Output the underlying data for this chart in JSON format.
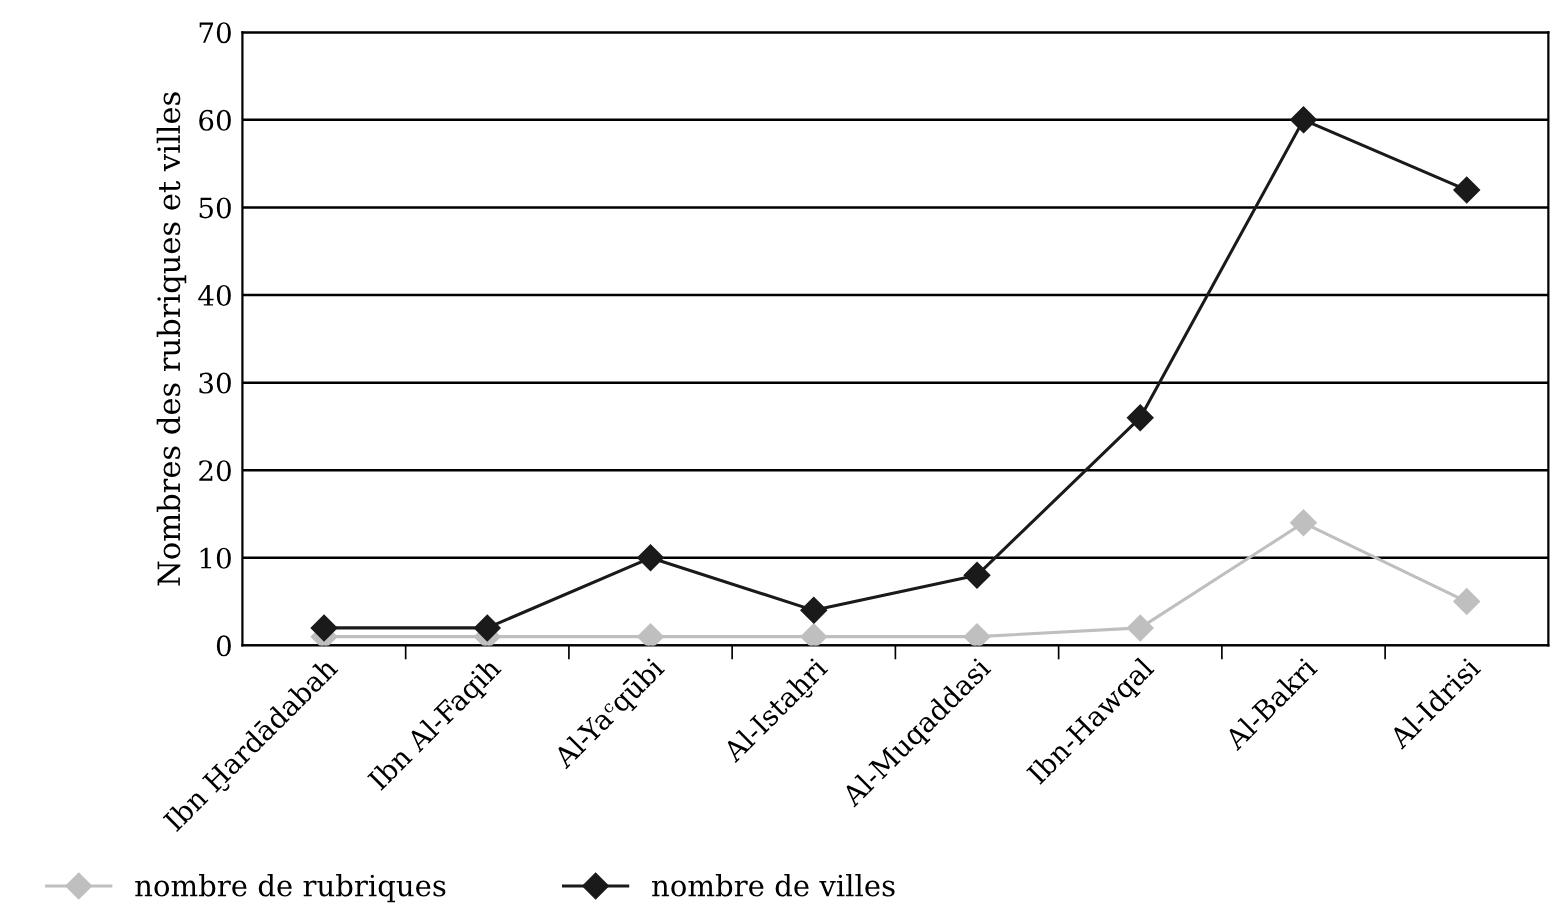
{
  "chart_data": {
    "type": "line",
    "ylabel": "Nombres des rubriques et villes",
    "categories": [
      "Ibn Ḫardādabah",
      "Ibn Al-Faqih",
      "Al-Yaᶜqūbi",
      "Al-Istaḫri",
      "Al-Muqaddasi",
      "Ibn-Hawqal",
      "Al-Bakri",
      "Al-Idrisi"
    ],
    "series": [
      {
        "name": "nombre de rubriques",
        "color": "#bfbfbf",
        "values": [
          1,
          1,
          1,
          1,
          1,
          2,
          14,
          5
        ]
      },
      {
        "name": "nombre de villes",
        "color": "#1a1a1a",
        "values": [
          2,
          2,
          10,
          4,
          8,
          26,
          60,
          52
        ]
      }
    ],
    "ylim": [
      0,
      70
    ],
    "yticks": [
      0,
      10,
      20,
      30,
      40,
      50,
      60,
      70
    ],
    "grid": "y",
    "legend": "bottom",
    "marker": "diamond",
    "line_style": "solid"
  }
}
